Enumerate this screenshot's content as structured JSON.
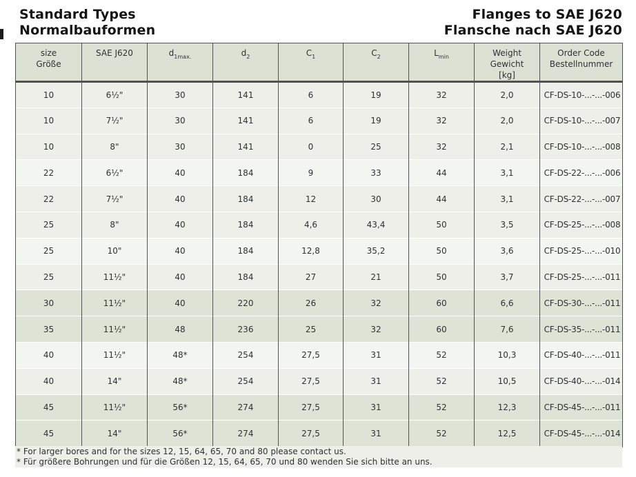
{
  "page": {
    "title_left_line1": "Standard Types",
    "title_left_line2": "Normalbauformen",
    "title_right_line1": "Flanges to SAE J620",
    "title_right_line2": "Flansche nach SAE J620"
  },
  "colors": {
    "header_bg": "#dde1d4",
    "row_light": "#edefe8",
    "row_lighter": "#f3f5f0",
    "row_dark": "#dfe3d5",
    "border": "#4f5250",
    "text": "#2e3133"
  },
  "table": {
    "columns": {
      "size": {
        "line1": "size",
        "line2": "Größe"
      },
      "sae": {
        "line1": "SAE J620"
      },
      "d1": {
        "base": "d",
        "sub": "1max."
      },
      "d2": {
        "base": "d",
        "sub": "2"
      },
      "c1": {
        "base": "C",
        "sub": "1"
      },
      "c2": {
        "base": "C",
        "sub": "2"
      },
      "lmin": {
        "base": "L",
        "sub": "min"
      },
      "weight": {
        "line1": "Weight",
        "line2": "Gewicht",
        "line3": "[kg]"
      },
      "order": {
        "line1": "Order Code",
        "line2": "Bestellnummer"
      }
    },
    "field_order": [
      "size",
      "sae",
      "d1",
      "d2",
      "c1",
      "c2",
      "lmin",
      "weight",
      "order"
    ],
    "rows": [
      {
        "size": "10",
        "sae": "6½\"",
        "d1": "30",
        "d2": "141",
        "c1": "6",
        "c2": "19",
        "lmin": "32",
        "weight": "2,0",
        "order": "CF-DS-10-...-...-006",
        "shade": "a"
      },
      {
        "size": "10",
        "sae": "7½\"",
        "d1": "30",
        "d2": "141",
        "c1": "6",
        "c2": "19",
        "lmin": "32",
        "weight": "2,0",
        "order": "CF-DS-10-...-...-007",
        "shade": "a"
      },
      {
        "size": "10",
        "sae": "8\"",
        "d1": "30",
        "d2": "141",
        "c1": "0",
        "c2": "25",
        "lmin": "32",
        "weight": "2,1",
        "order": "CF-DS-10-...-...-008",
        "shade": "a"
      },
      {
        "size": "22",
        "sae": "6½\"",
        "d1": "40",
        "d2": "184",
        "c1": "9",
        "c2": "33",
        "lmin": "44",
        "weight": "3,1",
        "order": "CF-DS-22-...-...-006",
        "shade": "b"
      },
      {
        "size": "22",
        "sae": "7½\"",
        "d1": "40",
        "d2": "184",
        "c1": "12",
        "c2": "30",
        "lmin": "44",
        "weight": "3,1",
        "order": "CF-DS-22-...-...-007",
        "shade": "a"
      },
      {
        "size": "25",
        "sae": "8\"",
        "d1": "40",
        "d2": "184",
        "c1": "4,6",
        "c2": "43,4",
        "lmin": "50",
        "weight": "3,5",
        "order": "CF-DS-25-...-...-008",
        "shade": "a"
      },
      {
        "size": "25",
        "sae": "10\"",
        "d1": "40",
        "d2": "184",
        "c1": "12,8",
        "c2": "35,2",
        "lmin": "50",
        "weight": "3,6",
        "order": "CF-DS-25-...-...-010",
        "shade": "b"
      },
      {
        "size": "25",
        "sae": "11½\"",
        "d1": "40",
        "d2": "184",
        "c1": "27",
        "c2": "21",
        "lmin": "50",
        "weight": "3,7",
        "order": "CF-DS-25-...-...-011",
        "shade": "a"
      },
      {
        "size": "30",
        "sae": "11½\"",
        "d1": "40",
        "d2": "220",
        "c1": "26",
        "c2": "32",
        "lmin": "60",
        "weight": "6,6",
        "order": "CF-DS-30-...-...-011",
        "shade": "d"
      },
      {
        "size": "35",
        "sae": "11½\"",
        "d1": "48",
        "d2": "236",
        "c1": "25",
        "c2": "32",
        "lmin": "60",
        "weight": "7,6",
        "order": "CF-DS-35-...-...-011",
        "shade": "d"
      },
      {
        "size": "40",
        "sae": "11½\"",
        "d1": "48*",
        "d2": "254",
        "c1": "27,5",
        "c2": "31",
        "lmin": "52",
        "weight": "10,3",
        "order": "CF-DS-40-...-...-011",
        "shade": "b"
      },
      {
        "size": "40",
        "sae": "14\"",
        "d1": "48*",
        "d2": "254",
        "c1": "27,5",
        "c2": "31",
        "lmin": "52",
        "weight": "10,5",
        "order": "CF-DS-40-...-...-014",
        "shade": "a"
      },
      {
        "size": "45",
        "sae": "11½\"",
        "d1": "56*",
        "d2": "274",
        "c1": "27,5",
        "c2": "31",
        "lmin": "52",
        "weight": "12,3",
        "order": "CF-DS-45-...-...-011",
        "shade": "d"
      },
      {
        "size": "45",
        "sae": "14\"",
        "d1": "56*",
        "d2": "274",
        "c1": "27,5",
        "c2": "31",
        "lmin": "52",
        "weight": "12,5",
        "order": "CF-DS-45-...-...-014",
        "shade": "d"
      }
    ]
  },
  "footnotes": [
    "* For larger bores and for the sizes 12, 15, 64, 65, 70 and 80 please contact us.",
    "* Für größere Bohrungen und für die Größen 12, 15, 64, 65, 70 und 80 wenden Sie sich bitte an uns."
  ]
}
